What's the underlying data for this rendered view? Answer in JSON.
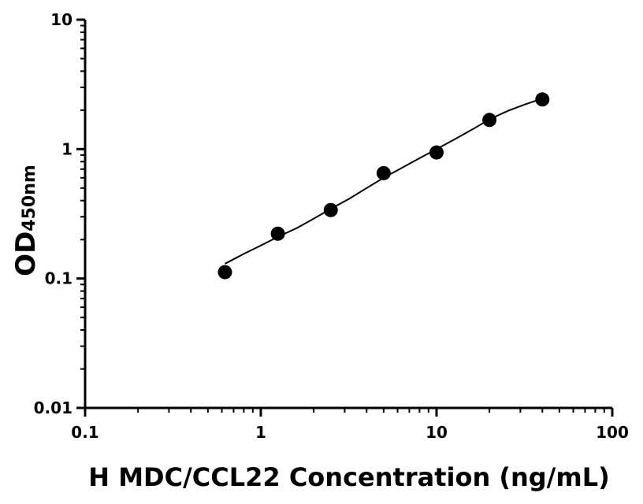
{
  "chart_data": {
    "type": "scatter",
    "title": "",
    "xlabel": "H MDC/CCL22 Concentration (ng/mL)",
    "ylabel": "OD",
    "ylabel_subscript": "450nm",
    "x_scale": "log",
    "y_scale": "log",
    "xlim": [
      0.1,
      100
    ],
    "ylim": [
      0.01,
      10
    ],
    "x_ticks": [
      "0.1",
      "1",
      "10",
      "100"
    ],
    "y_ticks": [
      "0.01",
      "0.1",
      "1",
      "10"
    ],
    "grid": false,
    "series": [
      {
        "x": [
          0.625,
          1.25,
          2.5,
          5,
          10,
          20,
          40
        ],
        "y": [
          0.112,
          0.222,
          0.338,
          0.652,
          0.941,
          1.68,
          2.42
        ]
      }
    ],
    "fit_curve": {
      "x": [
        0.625,
        0.8,
        1.0,
        1.25,
        1.6,
        2.0,
        2.5,
        3.2,
        4.0,
        5.0,
        6.4,
        8.0,
        10,
        12.8,
        16,
        20,
        25.6,
        32,
        40
      ],
      "y": [
        0.13,
        0.155,
        0.18,
        0.21,
        0.245,
        0.29,
        0.345,
        0.415,
        0.5,
        0.6,
        0.72,
        0.85,
        1.0,
        1.2,
        1.42,
        1.7,
        1.98,
        2.22,
        2.46
      ]
    },
    "colors": {
      "points": "#000000",
      "curve": "#000000",
      "axes": "#000000"
    }
  }
}
